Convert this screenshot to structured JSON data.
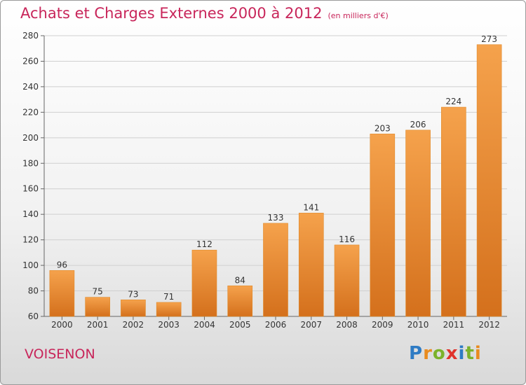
{
  "title": "Achats et Charges Externes 2000 à 2012",
  "subtitle": "(en milliers d'€)",
  "place": "VOISENON",
  "logo": {
    "text": "Proxiti",
    "letters": [
      {
        "ch": "P",
        "color": "#2e7bc4"
      },
      {
        "ch": "r",
        "color": "#e98b1e"
      },
      {
        "ch": "o",
        "color": "#7bb22b"
      },
      {
        "ch": "x",
        "color": "#e0332c"
      },
      {
        "ch": "i",
        "color": "#2e7bc4"
      },
      {
        "ch": "t",
        "color": "#7bb22b"
      },
      {
        "ch": "i",
        "color": "#e98b1e"
      }
    ]
  },
  "colors": {
    "bar_top": "#f5a24c",
    "bar_bottom": "#d4701c",
    "accent": "#c8255a"
  },
  "chart_data": {
    "type": "bar",
    "categories": [
      "2000",
      "2001",
      "2002",
      "2003",
      "2004",
      "2005",
      "2006",
      "2007",
      "2008",
      "2009",
      "2010",
      "2011",
      "2012"
    ],
    "values": [
      96,
      75,
      73,
      71,
      112,
      84,
      133,
      141,
      116,
      203,
      206,
      224,
      273
    ],
    "ylim": [
      60,
      280
    ],
    "yticks": [
      60,
      80,
      100,
      120,
      140,
      160,
      180,
      200,
      220,
      240,
      260,
      280
    ],
    "grid": true
  }
}
